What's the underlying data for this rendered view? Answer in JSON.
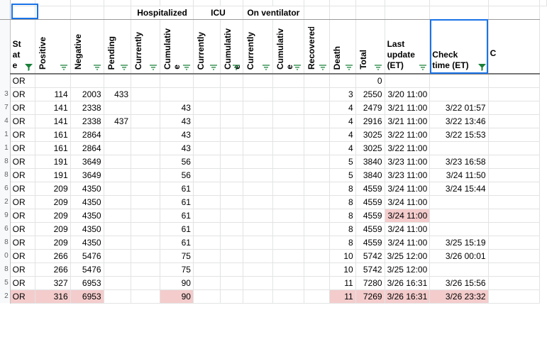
{
  "colors": {
    "highlight": "#f4cccc",
    "filter_active": "#188038",
    "filter": "#188038",
    "selection": "#1a73e8"
  },
  "row_numbers": [
    "",
    "",
    "",
    "3",
    "7",
    "4",
    "1",
    "1",
    "8",
    "8",
    "6",
    "2",
    "9",
    "6",
    "8",
    "0",
    "8",
    "5",
    "2"
  ],
  "groups": {
    "hospitalized": "Hospitalized",
    "icu": "ICU",
    "ventilator": "On ventilator"
  },
  "headers": {
    "state_1": "St",
    "state_2": "at",
    "state_3": "e",
    "positive": "Positive",
    "negative": "Negative",
    "pending": "Pending",
    "hosp_current": "Currently",
    "hosp_cum": "Cumulativ",
    "hosp_cum2": "e",
    "icu_current": "Currently",
    "icu_cum": "Cumulativ",
    "icu_cum2": "e",
    "vent_current": "Currently",
    "vent_cum": "Cumulativ",
    "vent_cum2": "e",
    "recovered": "Recovered",
    "death": "Death",
    "total": "Total",
    "last_update_1": "Last",
    "last_update_2": "update",
    "last_update_3": "(ET)",
    "check_time_1": "Check",
    "check_time_2": "time (ET)",
    "next_col": "C"
  },
  "rows": [
    {
      "state": "OR",
      "positive": "",
      "negative": "",
      "pending": "",
      "hosp_cum": "",
      "death": "",
      "total": "0",
      "last_update": "",
      "check_time": ""
    },
    {
      "state": "OR",
      "positive": "114",
      "negative": "2003",
      "pending": "433",
      "hosp_cum": "",
      "death": "3",
      "total": "2550",
      "last_update": "3/20 11:00",
      "check_time": ""
    },
    {
      "state": "OR",
      "positive": "141",
      "negative": "2338",
      "pending": "",
      "hosp_cum": "43",
      "death": "4",
      "total": "2479",
      "last_update": "3/21 11:00",
      "check_time": "3/22 01:57"
    },
    {
      "state": "OR",
      "positive": "141",
      "negative": "2338",
      "pending": "437",
      "hosp_cum": "43",
      "death": "4",
      "total": "2916",
      "last_update": "3/21 11:00",
      "check_time": "3/22 13:46"
    },
    {
      "state": "OR",
      "positive": "161",
      "negative": "2864",
      "pending": "",
      "hosp_cum": "43",
      "death": "4",
      "total": "3025",
      "last_update": "3/22 11:00",
      "check_time": "3/22 15:53"
    },
    {
      "state": "OR",
      "positive": "161",
      "negative": "2864",
      "pending": "",
      "hosp_cum": "43",
      "death": "4",
      "total": "3025",
      "last_update": "3/22 11:00",
      "check_time": ""
    },
    {
      "state": "OR",
      "positive": "191",
      "negative": "3649",
      "pending": "",
      "hosp_cum": "56",
      "death": "5",
      "total": "3840",
      "last_update": "3/23 11:00",
      "check_time": "3/23 16:58"
    },
    {
      "state": "OR",
      "positive": "191",
      "negative": "3649",
      "pending": "",
      "hosp_cum": "56",
      "death": "5",
      "total": "3840",
      "last_update": "3/23 11:00",
      "check_time": "3/24 11:50"
    },
    {
      "state": "OR",
      "positive": "209",
      "negative": "4350",
      "pending": "",
      "hosp_cum": "61",
      "death": "8",
      "total": "4559",
      "last_update": "3/24 11:00",
      "check_time": "3/24 15:44"
    },
    {
      "state": "OR",
      "positive": "209",
      "negative": "4350",
      "pending": "",
      "hosp_cum": "61",
      "death": "8",
      "total": "4559",
      "last_update": "3/24 11:00",
      "check_time": ""
    },
    {
      "state": "OR",
      "positive": "209",
      "negative": "4350",
      "pending": "",
      "hosp_cum": "61",
      "death": "8",
      "total": "4559",
      "last_update": "3/24 11:00",
      "check_time": "",
      "hl": [
        "last_update"
      ]
    },
    {
      "state": "OR",
      "positive": "209",
      "negative": "4350",
      "pending": "",
      "hosp_cum": "61",
      "death": "8",
      "total": "4559",
      "last_update": "3/24 11:00",
      "check_time": ""
    },
    {
      "state": "OR",
      "positive": "209",
      "negative": "4350",
      "pending": "",
      "hosp_cum": "61",
      "death": "8",
      "total": "4559",
      "last_update": "3/24 11:00",
      "check_time": "3/25 15:19"
    },
    {
      "state": "OR",
      "positive": "266",
      "negative": "5476",
      "pending": "",
      "hosp_cum": "75",
      "death": "10",
      "total": "5742",
      "last_update": "3/25 12:00",
      "check_time": "3/26 00:01"
    },
    {
      "state": "OR",
      "positive": "266",
      "negative": "5476",
      "pending": "",
      "hosp_cum": "75",
      "death": "10",
      "total": "5742",
      "last_update": "3/25 12:00",
      "check_time": ""
    },
    {
      "state": "OR",
      "positive": "327",
      "negative": "6953",
      "pending": "",
      "hosp_cum": "90",
      "death": "11",
      "total": "7280",
      "last_update": "3/26 16:31",
      "check_time": "3/26 15:56"
    },
    {
      "state": "OR",
      "positive": "316",
      "negative": "6953",
      "pending": "",
      "hosp_cum": "90",
      "death": "11",
      "total": "7269",
      "last_update": "3/26 16:31",
      "check_time": "3/26 23:32",
      "hl": [
        "state",
        "positive",
        "negative",
        "hosp_cum",
        "death",
        "total",
        "last_update",
        "check_time"
      ]
    }
  ]
}
